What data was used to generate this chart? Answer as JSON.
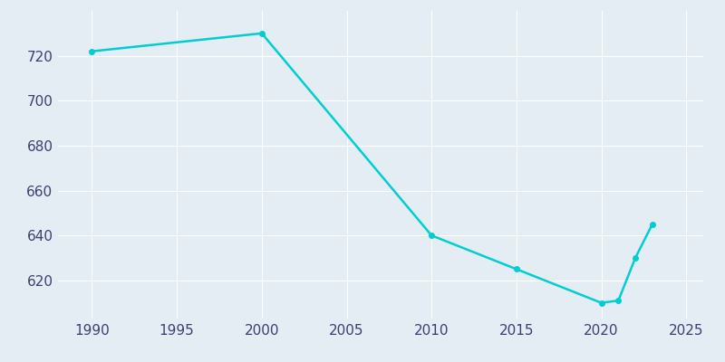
{
  "years": [
    1990,
    2000,
    2010,
    2015,
    2020,
    2021,
    2022,
    2023
  ],
  "population": [
    722,
    730,
    640,
    625,
    610,
    611,
    630,
    645
  ],
  "line_color": "#00CED1",
  "marker": "o",
  "marker_size": 4,
  "line_width": 1.8,
  "background_color": "#E4ECF4",
  "grid_color": "#FFFFFF",
  "xlim": [
    1988,
    2026
  ],
  "ylim": [
    603,
    740
  ],
  "xticks": [
    1990,
    1995,
    2000,
    2005,
    2010,
    2015,
    2020,
    2025
  ],
  "yticks": [
    620,
    640,
    660,
    680,
    700,
    720
  ],
  "tick_label_color": "#3A4070",
  "tick_fontsize": 11
}
